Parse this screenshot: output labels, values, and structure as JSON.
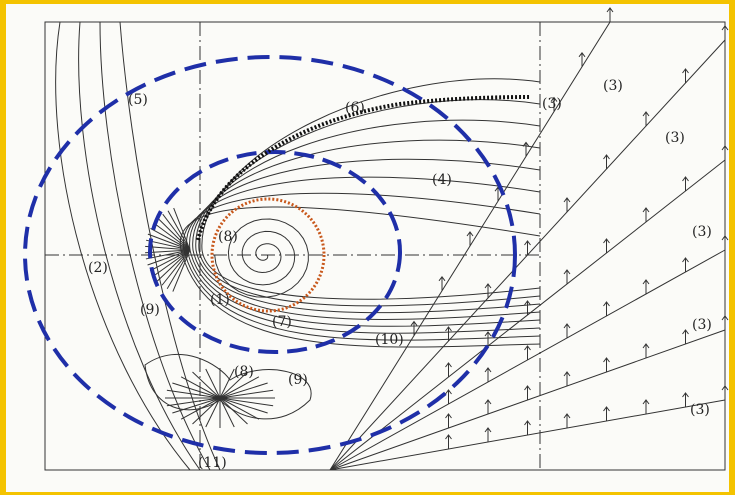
{
  "labels": [
    "(5)",
    "(6)",
    "(3)",
    "(3)",
    "(3)",
    "(3)",
    "(3)",
    "(3)",
    "(4)",
    "(2)",
    "(8)",
    "(1)",
    "(7)",
    "(9)",
    "(10)",
    "(8)",
    "(9)",
    "(11)"
  ]
}
